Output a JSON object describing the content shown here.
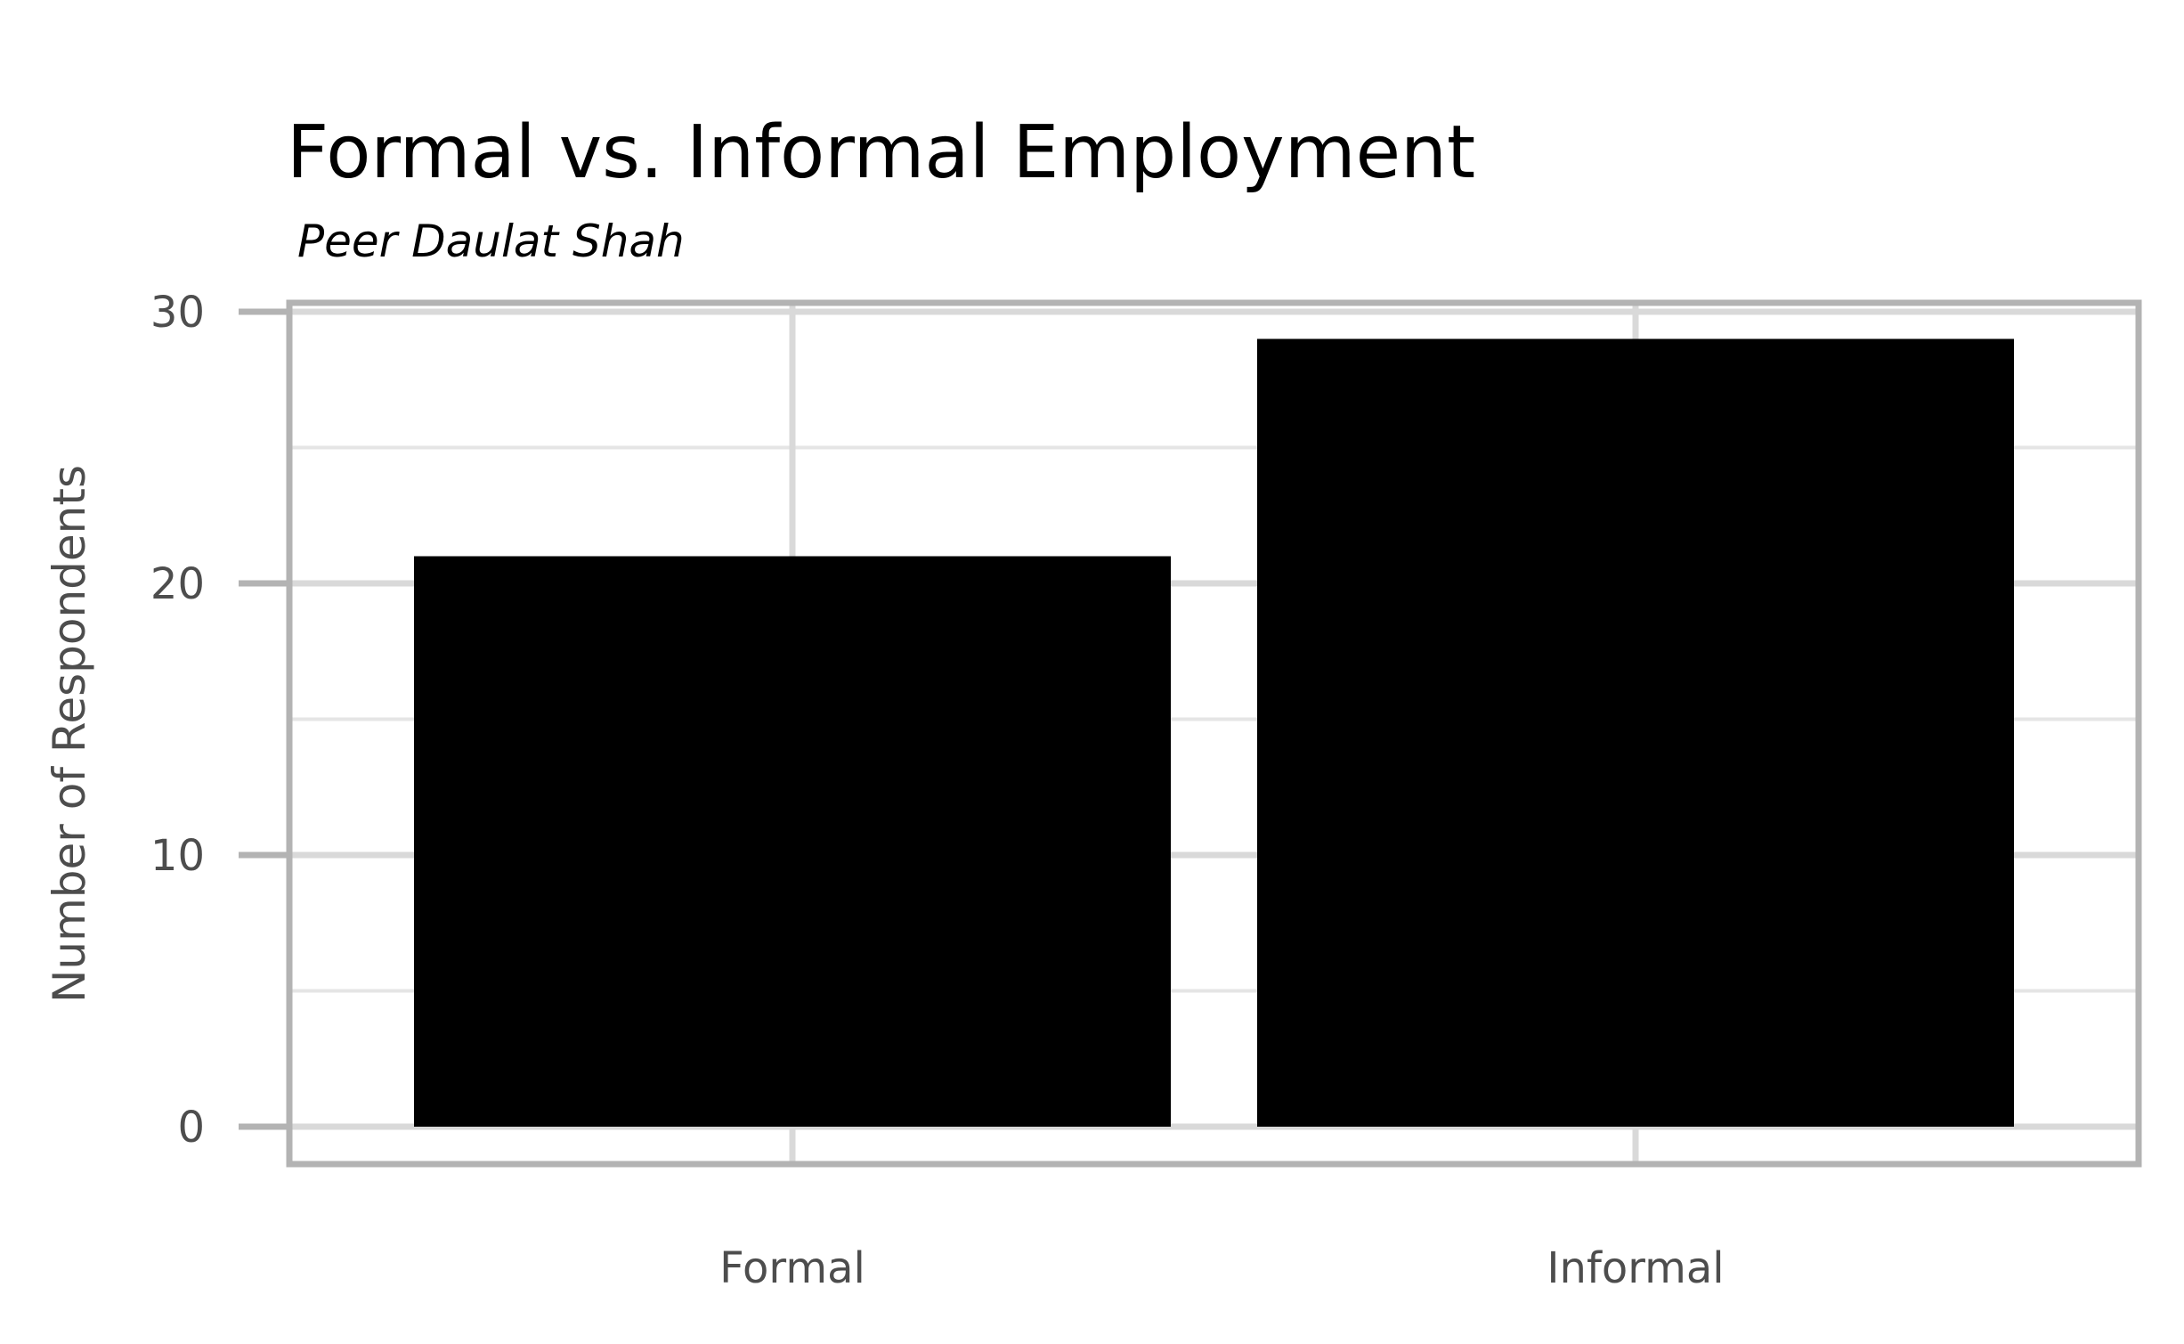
{
  "chart_data": {
    "type": "bar",
    "title": "Formal vs. Informal Employment",
    "subtitle": "Peer Daulat Shah",
    "xlabel": "",
    "ylabel": "Number of Respondents",
    "categories": [
      "Formal",
      "Informal"
    ],
    "values": [
      21,
      29
    ],
    "ylim": [
      0,
      30
    ],
    "yticks": [
      0,
      10,
      20,
      30
    ],
    "grid": true,
    "legend": "none",
    "colors": {
      "bar": "#000000",
      "panel_border": "#b3b3b3",
      "grid_major": "#d9d9d9",
      "grid_minor": "#e5e5e5",
      "tick_text": "#4d4d4d"
    }
  }
}
